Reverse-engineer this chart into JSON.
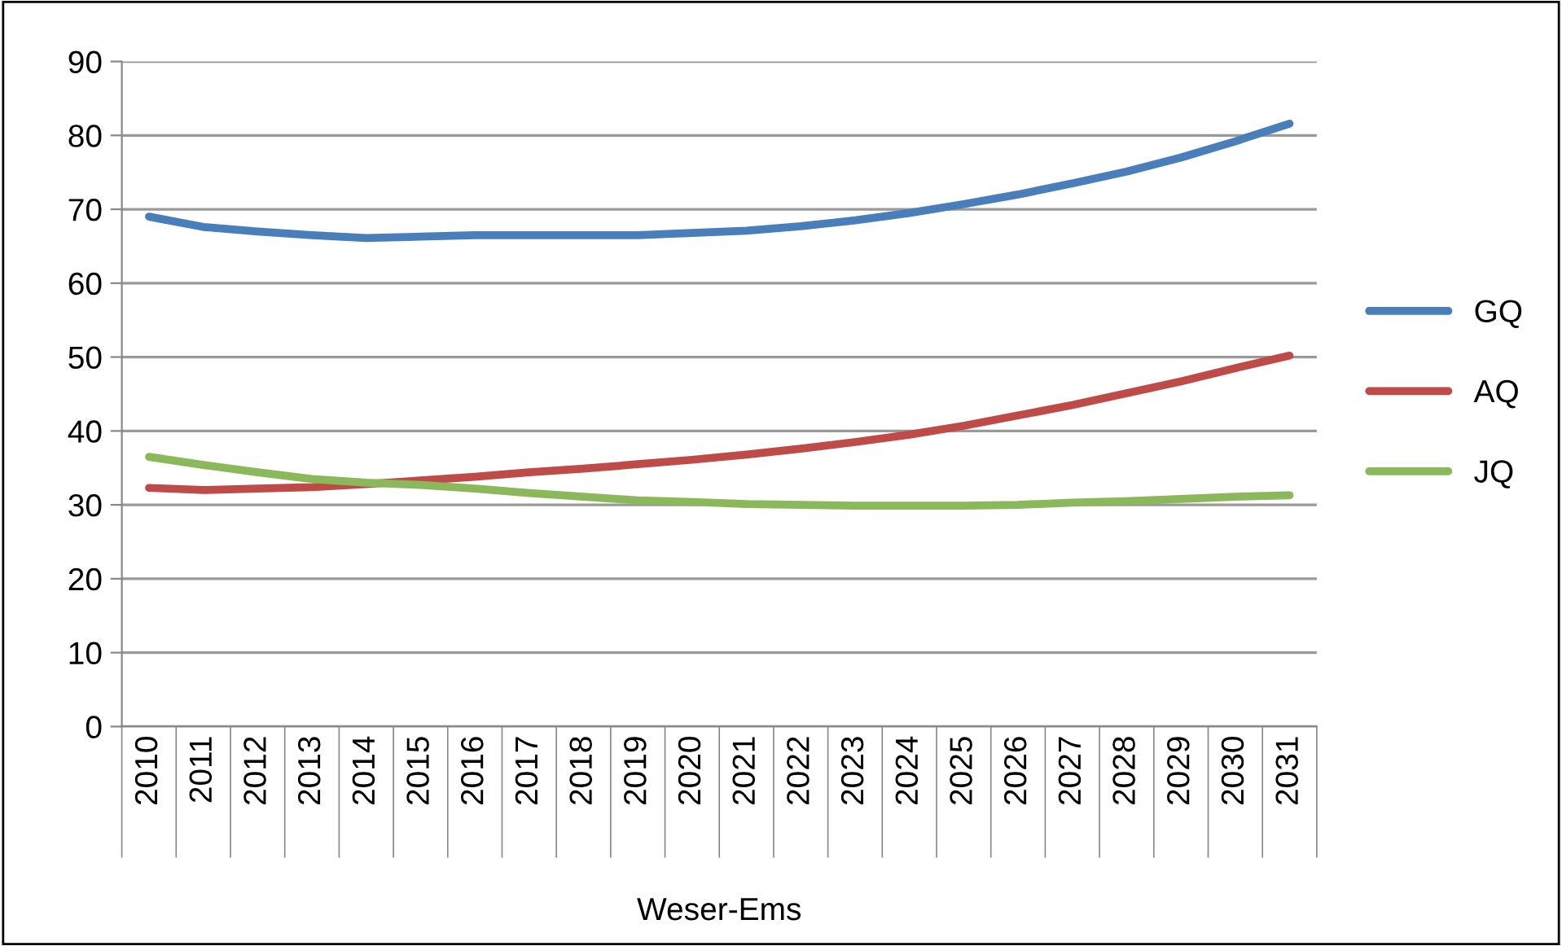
{
  "chart_data": {
    "type": "line",
    "xlabel": "Weser-Ems",
    "categories": [
      "2010",
      "2011",
      "2012",
      "2013",
      "2014",
      "2015",
      "2016",
      "2017",
      "2018",
      "2019",
      "2020",
      "2021",
      "2022",
      "2023",
      "2024",
      "2025",
      "2026",
      "2027",
      "2028",
      "2029",
      "2030",
      "2031"
    ],
    "series": [
      {
        "name": "GQ",
        "color": "#4a7ebb",
        "values": [
          69.0,
          67.6,
          67.0,
          66.5,
          66.1,
          66.3,
          66.5,
          66.5,
          66.5,
          66.5,
          66.8,
          67.1,
          67.7,
          68.5,
          69.5,
          70.7,
          72.0,
          73.5,
          75.1,
          77.0,
          79.2,
          81.6
        ]
      },
      {
        "name": "AQ",
        "color": "#be4b48",
        "values": [
          32.3,
          32.0,
          32.2,
          32.4,
          32.8,
          33.3,
          33.8,
          34.4,
          34.9,
          35.5,
          36.1,
          36.8,
          37.6,
          38.5,
          39.5,
          40.7,
          42.1,
          43.5,
          45.1,
          46.7,
          48.5,
          50.2
        ]
      },
      {
        "name": "JQ",
        "color": "#8cb85c",
        "values": [
          36.5,
          35.4,
          34.4,
          33.5,
          33.0,
          32.7,
          32.2,
          31.6,
          31.1,
          30.6,
          30.4,
          30.1,
          30.0,
          29.9,
          29.9,
          29.9,
          30.0,
          30.3,
          30.5,
          30.8,
          31.1,
          31.3
        ]
      }
    ],
    "ylim": [
      0,
      90
    ],
    "yticks": [
      0,
      10,
      20,
      30,
      40,
      50,
      60,
      70,
      80,
      90
    ],
    "grid": "y",
    "legend": "right",
    "marker": "none",
    "line_style": "solid"
  }
}
